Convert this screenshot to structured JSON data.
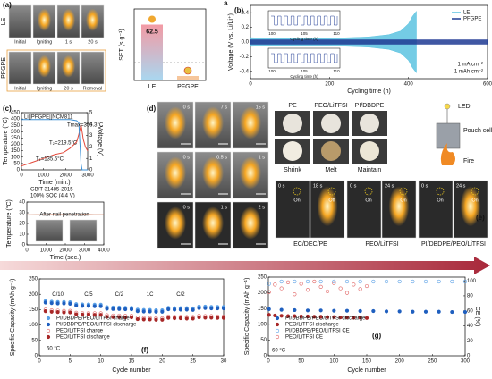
{
  "chart_data": [
    {
      "type": "bar",
      "ylabel": "SET (s g⁻¹)",
      "categories": [
        "LE",
        "PFGPE"
      ],
      "values": [
        62.5,
        5
      ],
      "value_labels": [
        "62.5",
        null
      ],
      "colors": [
        "#f4a3a8",
        "#f6c69c"
      ],
      "ylim": [
        0,
        80
      ],
      "reference_line": 20
    },
    {
      "type": "line",
      "xlabel": "Cycling time (h)",
      "ylabel": "Voltage (V vs. Li/Li⁺)",
      "xlim": [
        0,
        600
      ],
      "xticks": [
        0,
        200,
        400,
        600
      ],
      "ylim": [
        -0.5,
        0.5
      ],
      "yticks": [
        -0.4,
        -0.2,
        {
          "value": 0,
          "label": "0.0"
        },
        0.2,
        0.4
      ],
      "legend": "upper right",
      "annotations": [
        "1 mA cm⁻²",
        "1 mAh cm⁻²"
      ],
      "insets": [
        {
          "xlabel": "Cycling time (h)",
          "xticks": [
            100,
            105,
            110
          ]
        },
        {
          "xlabel": "Cycling time (h)",
          "xticks": [
            100,
            105,
            110
          ]
        }
      ],
      "series": [
        {
          "name": "LE",
          "color": "#5cc3e0",
          "x": [
            0,
            50,
            100,
            150,
            200,
            250,
            300,
            350,
            380,
            400,
            410,
            420
          ],
          "values": [
            0.06,
            0.05,
            0.05,
            0.05,
            0.05,
            0.06,
            0.07,
            0.1,
            0.15,
            0.25,
            0.35,
            0.42
          ],
          "lower": [
            -0.06,
            -0.05,
            -0.05,
            -0.05,
            -0.05,
            -0.06,
            -0.07,
            -0.1,
            -0.15,
            -0.25,
            -0.35,
            -0.42
          ]
        },
        {
          "name": "PFGPE",
          "color": "#1f3a93",
          "x": [
            0,
            100,
            200,
            300,
            400,
            500,
            600
          ],
          "values": [
            0.03,
            0.03,
            0.03,
            0.03,
            0.03,
            0.03,
            0.03
          ],
          "lower": [
            -0.03,
            -0.03,
            -0.03,
            -0.03,
            -0.03,
            -0.03,
            -0.03
          ]
        }
      ]
    },
    {
      "type": "line",
      "xlabel": "Time (min.)",
      "ylabel": "Temperature (°C)",
      "y2label": "Voltage (V)",
      "xlim": [
        0,
        3000
      ],
      "xticks": [
        0,
        1000,
        2000,
        3000
      ],
      "ylim": [
        0,
        450
      ],
      "yticks": [
        0,
        50,
        100,
        150,
        200,
        250,
        300,
        350,
        400,
        450
      ],
      "y2lim": [
        0,
        5
      ],
      "y2ticks": [
        0,
        1,
        2,
        3,
        4,
        5
      ],
      "annotations": [
        "Li||PFGPE||NCM811",
        "Tmax=356.3°C",
        "T₂=219.5°C",
        "T₁=135.5°C"
      ],
      "x": [
        0,
        500,
        1000,
        1500,
        1900,
        2200,
        2500,
        2600,
        2700,
        2750,
        2800,
        2900,
        3000
      ],
      "series": [
        {
          "color": "#e3483a",
          "values": [
            30,
            60,
            90,
            120,
            135.5,
            170,
            219.5,
            280,
            356.3,
            300,
            240,
            180,
            150
          ]
        },
        {
          "color": "#3a8fd6",
          "axis": "y2",
          "values": [
            4.4,
            4.4,
            4.4,
            4.4,
            4.4,
            4.4,
            4.3,
            4.1,
            0.5,
            0,
            0,
            0,
            0
          ]
        }
      ]
    },
    {
      "type": "line",
      "xlabel": "Time (sec.)",
      "ylabel": "Temperature (°C)",
      "xlim": [
        0,
        4000
      ],
      "xticks": [
        0,
        1000,
        2000,
        3000,
        4000
      ],
      "ylim": [
        0,
        40
      ],
      "yticks": [
        0,
        10,
        20,
        30,
        40
      ],
      "annotations": [
        "GB/T 31485-2015",
        "100% SOC (4.4 V)",
        "After nail penetration"
      ],
      "x": [
        0,
        500,
        1000,
        1500,
        2000,
        2500,
        3000,
        3500,
        4000
      ],
      "series": [
        {
          "color": "#c0603a",
          "values": [
            28,
            28.2,
            28.1,
            28.3,
            28.2,
            28.1,
            28.3,
            28.2,
            28.1
          ]
        }
      ]
    },
    {
      "type": "scatter",
      "xlabel": "Cycle number",
      "ylabel": "Specific Capacity (mAh g⁻¹)",
      "xlim": [
        0,
        30
      ],
      "xticks": [
        0,
        5,
        10,
        15,
        20,
        25,
        30
      ],
      "ylim": [
        0,
        250
      ],
      "yticks": [
        0,
        50,
        100,
        150,
        200,
        250
      ],
      "legend": "lower left",
      "annotations": [
        "60 °C"
      ],
      "rate_labels": [
        "C/10",
        "C/5",
        "C/2",
        "1C",
        "C/2"
      ],
      "x": [
        1,
        2,
        3,
        4,
        5,
        6,
        7,
        8,
        9,
        10,
        11,
        12,
        13,
        14,
        15,
        16,
        17,
        18,
        19,
        20,
        21,
        22,
        23,
        24,
        25,
        26,
        27,
        28,
        29,
        30
      ],
      "series": [
        {
          "name": "PI/DBDPE/PEO/LiTFSI charge",
          "color": "#5aa0e6",
          "marker": "filled",
          "values": [
            178,
            176,
            175,
            175,
            174,
            168,
            167,
            167,
            166,
            166,
            158,
            157,
            157,
            156,
            156,
            150,
            149,
            149,
            148,
            148,
            156,
            155,
            155,
            155,
            154,
            160,
            160,
            159,
            159,
            159
          ]
        },
        {
          "name": "PI/DBDPE/PEO/LiTFSI discharge",
          "color": "#1f5fbf",
          "marker": "filled",
          "values": [
            173,
            171,
            170,
            170,
            169,
            163,
            162,
            162,
            161,
            161,
            153,
            152,
            152,
            151,
            151,
            145,
            144,
            144,
            143,
            143,
            151,
            150,
            150,
            150,
            149,
            155,
            155,
            154,
            154,
            154
          ]
        },
        {
          "name": "PEO/LiTFSI charge",
          "color": "#e06060",
          "marker": "open",
          "values": [
            150,
            148,
            147,
            146,
            146,
            140,
            139,
            139,
            138,
            138,
            132,
            131,
            131,
            130,
            130,
            124,
            123,
            123,
            122,
            122,
            128,
            127,
            127,
            126,
            126,
            130,
            129,
            129,
            128,
            128
          ]
        },
        {
          "name": "PEO/LiTFSI discharge",
          "color": "#a82828",
          "marker": "filled",
          "values": [
            145,
            143,
            142,
            141,
            141,
            135,
            134,
            134,
            133,
            133,
            127,
            126,
            126,
            125,
            125,
            119,
            118,
            118,
            117,
            117,
            123,
            122,
            122,
            121,
            121,
            125,
            124,
            124,
            123,
            123
          ]
        }
      ]
    },
    {
      "type": "scatter",
      "xlabel": "Cycle number",
      "ylabel": "Specific Capacity (mAh g⁻¹)",
      "y2label": "CE (%)",
      "xlim": [
        0,
        300
      ],
      "xticks": [
        0,
        50,
        100,
        150,
        200,
        250,
        300
      ],
      "ylim": [
        0,
        250
      ],
      "yticks": [
        0,
        50,
        100,
        150,
        200,
        250
      ],
      "y2lim": [
        0,
        105
      ],
      "y2ticks": [
        0,
        20,
        40,
        60,
        80,
        100
      ],
      "legend": "lower left",
      "annotations": [
        "60 °C"
      ],
      "series": [
        {
          "name": "PI/DBDPE/PEO/LiTFSI discharge",
          "color": "#1f5fbf",
          "marker": "filled",
          "x": [
            1,
            20,
            40,
            60,
            80,
            100,
            120,
            140,
            160,
            180,
            200,
            220,
            240,
            260,
            280,
            300
          ],
          "values": [
            148,
            146,
            145,
            144,
            144,
            143,
            143,
            142,
            142,
            141,
            141,
            140,
            140,
            140,
            139,
            139
          ]
        },
        {
          "name": "PEO/LiTFSI discharge",
          "color": "#a82828",
          "marker": "filled",
          "x": [
            1,
            10,
            20,
            30,
            40,
            50,
            60,
            70,
            80,
            90,
            100,
            110,
            120,
            130,
            140,
            150
          ],
          "values": [
            130,
            128,
            127,
            126,
            126,
            125,
            125,
            124,
            124,
            123,
            123,
            122,
            122,
            121,
            121,
            120
          ]
        },
        {
          "name": "PI/DBDPE/PEO/LiTFSI CE",
          "color": "#5aa0e6",
          "marker": "open",
          "axis": "y2",
          "x": [
            1,
            20,
            40,
            60,
            80,
            100,
            120,
            140,
            160,
            180,
            200,
            220,
            240,
            260,
            280,
            300
          ],
          "values": [
            96,
            99,
            99,
            99,
            99,
            99,
            99,
            99,
            99,
            99,
            99,
            99,
            99,
            99,
            99,
            99
          ]
        },
        {
          "name": "PEO/LiTFSI CE",
          "color": "#e06060",
          "marker": "open",
          "axis": "y2",
          "x": [
            1,
            10,
            20,
            30,
            40,
            50,
            60,
            70,
            80,
            90,
            100,
            110,
            120,
            130,
            140,
            150
          ],
          "values": [
            85,
            95,
            90,
            98,
            82,
            96,
            88,
            99,
            92,
            86,
            97,
            90,
            84,
            95,
            89,
            93
          ]
        }
      ]
    }
  ],
  "figure": {
    "panel_labels": [
      "(a)",
      "(b)",
      "(c)",
      "(d)",
      "(e)",
      "(f)",
      "(g)",
      "a"
    ],
    "a_rows": [
      "LE",
      "PFGPE"
    ],
    "a_captions": [
      [
        "Initial",
        "Igniting",
        "1 s",
        "20 s"
      ],
      [
        "Initial",
        "Igniting",
        "20 s",
        "Removal"
      ]
    ],
    "d_times": [
      [
        "0 s",
        "7 s",
        "15 s"
      ],
      [
        "0 s",
        "0.5 s",
        "1 s"
      ],
      [
        "0 s",
        "1 s",
        "2 s"
      ]
    ],
    "separators": {
      "names": [
        "PE",
        "PEO/LiTFSI",
        "PI/DBDPE"
      ],
      "states": [
        "Shrink",
        "Melt",
        "Maintain"
      ]
    },
    "device": [
      "LED",
      "Pouch cell",
      "Fire"
    ],
    "e": {
      "names": [
        "EC/DEC/PE",
        "PEO/LiTFSI",
        "PI/DBDPE/PEO/LiTFSI"
      ],
      "times": [
        [
          "0 s",
          "18 s"
        ],
        [
          "0 s",
          "24 s"
        ],
        [
          "0 s",
          "24 s"
        ]
      ],
      "on": "On",
      "off": "Off"
    }
  }
}
